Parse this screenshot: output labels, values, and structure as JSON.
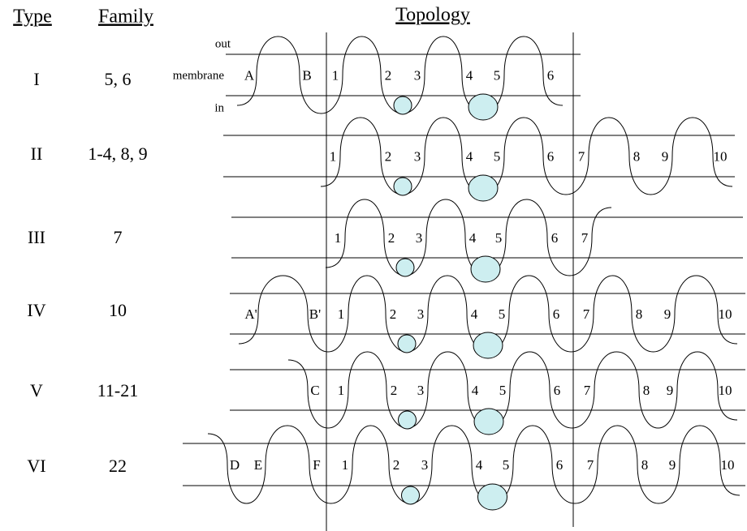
{
  "header": {
    "type": "Type",
    "family": "Family",
    "topology": "Topology"
  },
  "membrane_labels": {
    "out": "out",
    "membrane": "membrane",
    "in": "in"
  },
  "rows": [
    {
      "type": "I",
      "family": "5, 6",
      "helices": [
        "A",
        "B",
        "1",
        "2",
        "3",
        "4",
        "5",
        "6"
      ]
    },
    {
      "type": "II",
      "family": "1-4, 8, 9",
      "helices": [
        "1",
        "2",
        "3",
        "4",
        "5",
        "6",
        "7",
        "8",
        "9",
        "10"
      ]
    },
    {
      "type": "III",
      "family": "7",
      "helices": [
        "1",
        "2",
        "3",
        "4",
        "5",
        "6",
        "7"
      ]
    },
    {
      "type": "IV",
      "family": "10",
      "helices": [
        "A'",
        "B'",
        "1",
        "2",
        "3",
        "4",
        "5",
        "6",
        "7",
        "8",
        "9",
        "10"
      ]
    },
    {
      "type": "V",
      "family": "11-21",
      "helices": [
        "C",
        "1",
        "2",
        "3",
        "4",
        "5",
        "6",
        "7",
        "8",
        "9",
        "10"
      ]
    },
    {
      "type": "VI",
      "family": "22",
      "helices": [
        "D",
        "E",
        "F",
        "1",
        "2",
        "3",
        "4",
        "5",
        "6",
        "7",
        "8",
        "9",
        "10"
      ]
    }
  ]
}
